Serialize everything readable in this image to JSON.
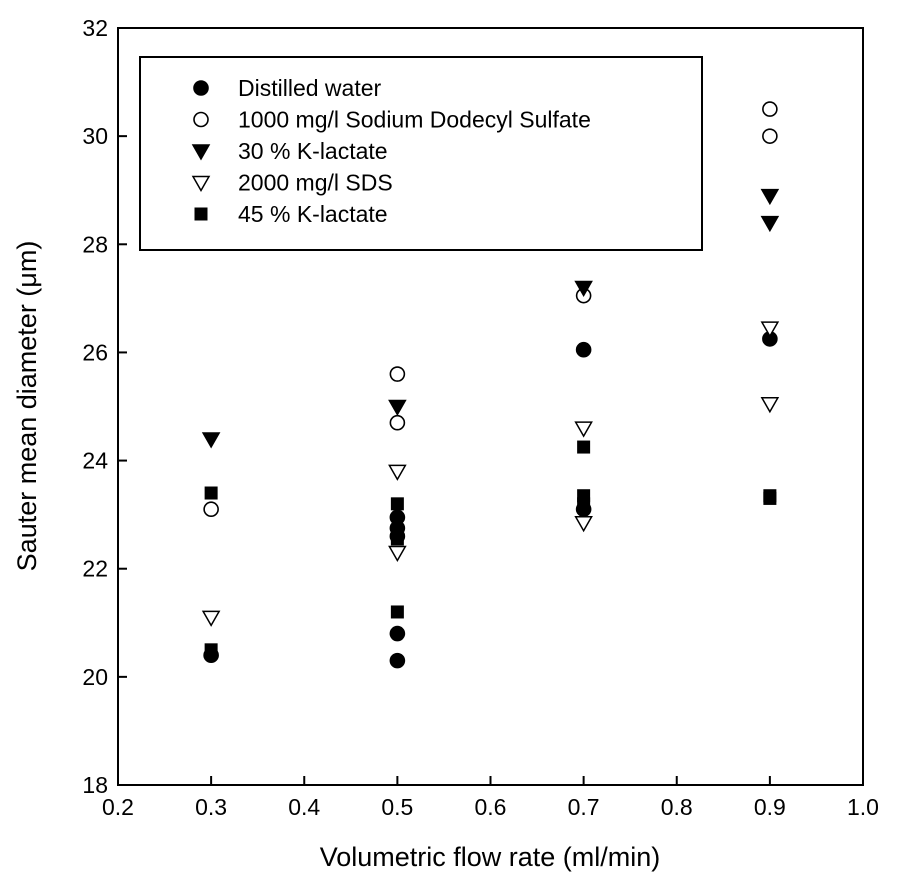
{
  "chart_data": {
    "type": "scatter",
    "title": "",
    "xlabel": "Volumetric flow rate  (ml/min)",
    "ylabel": "Sauter mean diameter (μm)",
    "xlim": [
      0.2,
      1.0
    ],
    "ylim": [
      18,
      32
    ],
    "x_ticks": [
      0.2,
      0.3,
      0.4,
      0.5,
      0.6,
      0.7,
      0.8,
      0.9,
      1.0
    ],
    "y_ticks": [
      18,
      20,
      22,
      24,
      26,
      28,
      30,
      32
    ],
    "x_tick_labels": [
      "0.2",
      "0.3",
      "0.4",
      "0.5",
      "0.6",
      "0.7",
      "0.8",
      "0.9",
      "1.0"
    ],
    "y_tick_labels": [
      "18",
      "20",
      "22",
      "24",
      "26",
      "28",
      "30",
      "32"
    ],
    "grid": false,
    "legend_position": "top-left",
    "series": [
      {
        "name": "Distilled water",
        "marker": "filled-circle",
        "color": "#000000",
        "points": [
          [
            0.3,
            20.4
          ],
          [
            0.5,
            20.3
          ],
          [
            0.5,
            20.8
          ],
          [
            0.5,
            22.6
          ],
          [
            0.5,
            22.75
          ],
          [
            0.5,
            22.95
          ],
          [
            0.7,
            23.1
          ],
          [
            0.7,
            26.05
          ],
          [
            0.9,
            26.25
          ]
        ]
      },
      {
        "name": "1000 mg/l Sodium Dodecyl Sulfate",
        "marker": "open-circle",
        "color": "#000000",
        "points": [
          [
            0.3,
            23.1
          ],
          [
            0.5,
            24.7
          ],
          [
            0.5,
            25.6
          ],
          [
            0.7,
            27.05
          ],
          [
            0.9,
            30.0
          ],
          [
            0.9,
            30.5
          ]
        ]
      },
      {
        "name": "30 % K-lactate",
        "marker": "filled-triangle-down",
        "color": "#000000",
        "points": [
          [
            0.3,
            24.4
          ],
          [
            0.5,
            25.0
          ],
          [
            0.7,
            27.2
          ],
          [
            0.9,
            28.4
          ],
          [
            0.9,
            28.9
          ]
        ]
      },
      {
        "name": "2000 mg/l SDS",
        "marker": "open-triangle-down",
        "color": "#000000",
        "points": [
          [
            0.3,
            21.1
          ],
          [
            0.5,
            22.3
          ],
          [
            0.5,
            23.8
          ],
          [
            0.7,
            22.85
          ],
          [
            0.7,
            24.6
          ],
          [
            0.9,
            25.05
          ],
          [
            0.9,
            26.45
          ]
        ]
      },
      {
        "name": "45 % K-lactate",
        "marker": "filled-square",
        "color": "#000000",
        "points": [
          [
            0.3,
            20.5
          ],
          [
            0.3,
            23.4
          ],
          [
            0.5,
            21.2
          ],
          [
            0.5,
            22.55
          ],
          [
            0.5,
            23.2
          ],
          [
            0.7,
            23.2
          ],
          [
            0.7,
            23.35
          ],
          [
            0.7,
            24.25
          ],
          [
            0.9,
            23.3
          ],
          [
            0.9,
            23.35
          ]
        ]
      }
    ]
  }
}
